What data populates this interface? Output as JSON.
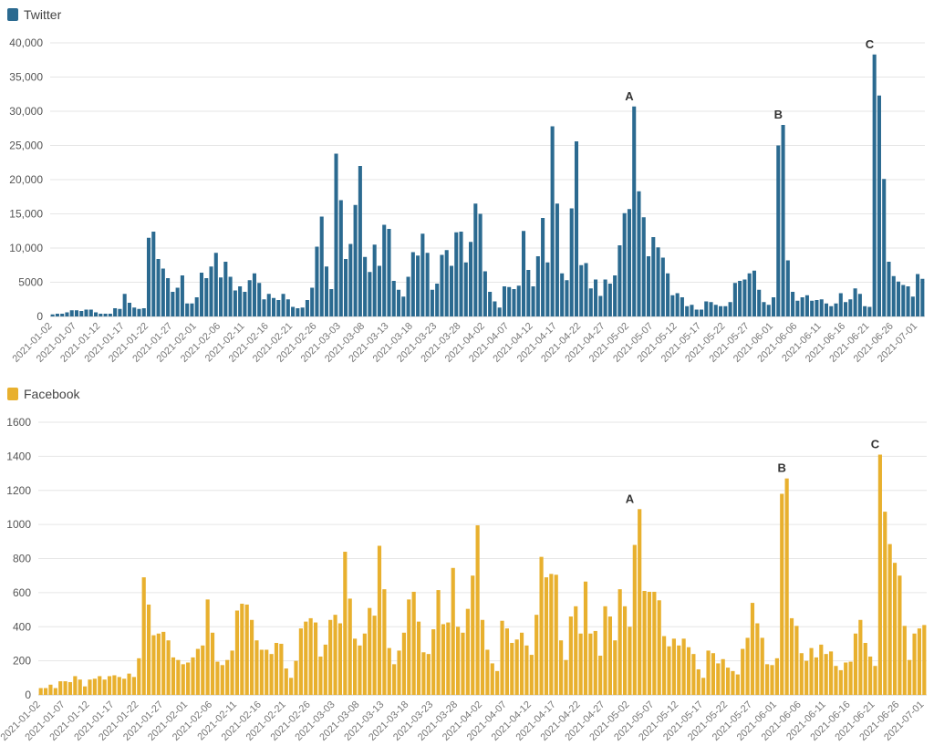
{
  "chart_data": [
    {
      "type": "bar",
      "legend": "Twitter",
      "color": "#2b6a90",
      "ylim": [
        0,
        40000
      ],
      "yticks": [
        "0",
        "5000",
        "10,000",
        "15,000",
        "20,000",
        "25,000",
        "30,000",
        "35,000",
        "40,000"
      ],
      "ytick_values": [
        0,
        5000,
        10000,
        15000,
        20000,
        25000,
        30000,
        35000,
        40000
      ],
      "start_date": "2021-01-02",
      "x_tick_labels": [
        "2021-01-02",
        "2021-01-07",
        "2021-01-12",
        "2021-01-17",
        "2021-01-22",
        "2021-01-27",
        "2021-02-01",
        "2021-02-06",
        "2021-02-11",
        "2021-02-16",
        "2021-02-21",
        "2021-02-26",
        "2021-03-03",
        "2021-03-08",
        "2021-03-13",
        "2021-03-18",
        "2021-03-23",
        "2021-03-28",
        "2021-04-02",
        "2021-04-07",
        "2021-04-12",
        "2021-04-17",
        "2021-04-22",
        "2021-04-27",
        "2021-05-02",
        "2021-05-07",
        "2021-05-12",
        "2021-05-17",
        "2021-05-22",
        "2021-05-27",
        "2021-06-01",
        "2021-06-06",
        "2021-06-11",
        "2021-06-16",
        "2021-06-21",
        "2021-06-26",
        "2021-07-01"
      ],
      "values": [
        300,
        400,
        400,
        600,
        900,
        900,
        800,
        1000,
        1000,
        600,
        400,
        400,
        400,
        1200,
        1100,
        3300,
        2000,
        1300,
        1100,
        1200,
        11500,
        12400,
        8400,
        7000,
        5600,
        3600,
        4200,
        6000,
        1900,
        1900,
        2800,
        6400,
        5600,
        7300,
        9300,
        5700,
        8000,
        5800,
        3800,
        4400,
        3600,
        5300,
        6300,
        4900,
        2500,
        3300,
        2700,
        2400,
        3300,
        2500,
        1400,
        1200,
        1300,
        2400,
        4200,
        10200,
        14600,
        7300,
        4000,
        23800,
        17000,
        8400,
        10600,
        16300,
        22000,
        8700,
        6500,
        10500,
        7400,
        13400,
        12800,
        5200,
        3900,
        2900,
        5800,
        9400,
        8900,
        12100,
        9300,
        3900,
        4800,
        9000,
        9700,
        7400,
        12300,
        12400,
        7900,
        10900,
        16500,
        15000,
        6600,
        3600,
        2200,
        1300,
        4400,
        4300,
        4000,
        4500,
        12500,
        6800,
        4400,
        8800,
        14400,
        7900,
        27800,
        16500,
        6300,
        5300,
        15800,
        25600,
        7500,
        7800,
        4100,
        5400,
        3000,
        5400,
        4800,
        6000,
        10400,
        15100,
        15700,
        30700,
        18300,
        14500,
        8800,
        11600,
        10100,
        8600,
        6300,
        3100,
        3400,
        2800,
        1500,
        1700,
        1000,
        1000,
        2200,
        2100,
        1700,
        1500,
        1500,
        2100,
        4900,
        5200,
        5400,
        6300,
        6700,
        3900,
        2100,
        1700,
        2800,
        25000,
        28000,
        8200,
        3600,
        2300,
        2800,
        3100,
        2300,
        2400,
        2500,
        1900,
        1500,
        1900,
        3400,
        2100,
        2500,
        4100,
        3300,
        1500,
        1400,
        38300,
        32300,
        20100,
        8000,
        5900,
        5100,
        4600,
        4400,
        2900,
        6200,
        5500
      ],
      "annotations": [
        {
          "label": "A",
          "date": "2021-05-02",
          "value": 30700
        },
        {
          "label": "B",
          "date": "2021-06-02",
          "value": 28000
        },
        {
          "label": "C",
          "date": "2021-06-21",
          "value": 38300
        }
      ]
    },
    {
      "type": "bar",
      "legend": "Facebook",
      "color": "#e8b02e",
      "ylim": [
        0,
        1600
      ],
      "yticks": [
        "0",
        "200",
        "400",
        "600",
        "800",
        "1000",
        "1200",
        "1400",
        "1600"
      ],
      "ytick_values": [
        0,
        200,
        400,
        600,
        800,
        1000,
        1200,
        1400,
        1600
      ],
      "start_date": "2021-01-02",
      "x_tick_labels": [
        "2021-01-02",
        "2021-01-07",
        "2021-01-12",
        "2021-01-17",
        "2021-01-22",
        "2021-01-27",
        "2021-02-01",
        "2021-02-06",
        "2021-02-11",
        "2021-02-16",
        "2021-02-21",
        "2021-02-26",
        "2021-03-03",
        "2021-03-08",
        "2021-03-13",
        "2021-03-18",
        "2021-03-23",
        "2021-03-28",
        "2021-04-02",
        "2021-04-07",
        "2021-04-12",
        "2021-04-17",
        "2021-04-22",
        "2021-04-27",
        "2021-05-02",
        "2021-05-07",
        "2021-05-12",
        "2021-05-17",
        "2021-05-22",
        "2021-05-27",
        "2021-06-01",
        "2021-06-06",
        "2021-06-11",
        "2021-06-16",
        "2021-06-21",
        "2021-06-26",
        "2021-07-01"
      ],
      "values": [
        40,
        40,
        60,
        40,
        80,
        80,
        75,
        110,
        90,
        50,
        90,
        95,
        110,
        90,
        110,
        115,
        105,
        95,
        125,
        105,
        215,
        690,
        530,
        350,
        360,
        370,
        320,
        220,
        205,
        180,
        190,
        220,
        270,
        290,
        560,
        365,
        195,
        175,
        205,
        260,
        495,
        535,
        530,
        440,
        320,
        265,
        265,
        240,
        305,
        300,
        155,
        100,
        200,
        390,
        430,
        450,
        425,
        225,
        295,
        440,
        470,
        420,
        840,
        565,
        330,
        290,
        360,
        510,
        465,
        875,
        620,
        275,
        180,
        260,
        365,
        560,
        605,
        430,
        250,
        240,
        385,
        615,
        415,
        425,
        745,
        400,
        365,
        505,
        700,
        995,
        440,
        265,
        185,
        140,
        435,
        390,
        305,
        325,
        365,
        290,
        235,
        470,
        810,
        690,
        710,
        705,
        320,
        205,
        460,
        520,
        360,
        665,
        360,
        375,
        230,
        520,
        460,
        320,
        620,
        520,
        400,
        880,
        1090,
        610,
        605,
        605,
        555,
        345,
        285,
        330,
        290,
        330,
        280,
        240,
        150,
        100,
        260,
        245,
        185,
        210,
        160,
        140,
        120,
        270,
        335,
        540,
        420,
        335,
        180,
        175,
        215,
        1180,
        1270,
        450,
        405,
        245,
        200,
        275,
        220,
        295,
        240,
        255,
        170,
        145,
        190,
        195,
        360,
        440,
        305,
        225,
        170,
        1410,
        1075,
        885,
        775,
        700,
        405,
        205,
        360,
        390,
        410
      ],
      "annotations": [
        {
          "label": "A",
          "date": "2021-05-02",
          "value": 1090
        },
        {
          "label": "B",
          "date": "2021-06-02",
          "value": 1270
        },
        {
          "label": "C",
          "date": "2021-06-21",
          "value": 1410
        }
      ]
    }
  ]
}
